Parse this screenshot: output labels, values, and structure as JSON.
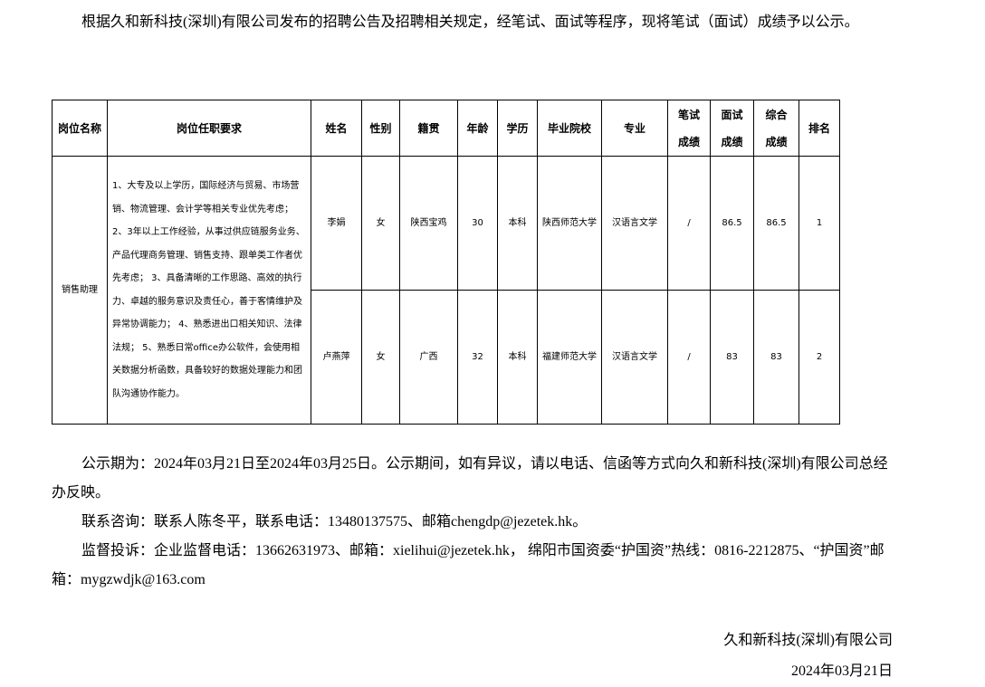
{
  "intro": "根据久和新科技(深圳)有限公司发布的招聘公告及招聘相关规定，经笔试、面试等程序，现将笔试（面试）成绩予以公示。",
  "table": {
    "headers": [
      "岗位名称",
      "岗位任职要求",
      "姓名",
      "性别",
      "籍贯",
      "年龄",
      "学历",
      "毕业院校",
      "专业",
      "笔试成绩",
      "面试成绩",
      "综合成绩",
      "排名"
    ],
    "position": "销售助理",
    "requirements": "1、大专及以上学历，国际经济与贸易、市场营销、物流管理、会计学等相关专业优先考虑； 2、3年以上工作经验，从事过供应链服务业务、产品代理商务管理、销售支持、跟单类工作者优先考虑； 3、具备清晰的工作思路、高效的执行力、卓越的服务意识及责任心，善于客情维护及异常协调能力； 4、熟悉进出口相关知识、法律法规； 5、熟悉日常office办公软件，会使用相关数据分析函数，具备较好的数据处理能力和团队沟通协作能力。",
    "rows": [
      {
        "name": "李娟",
        "gender": "女",
        "origin": "陕西宝鸡",
        "age": "30",
        "edu": "本科",
        "school": "陕西师范大学",
        "major": "汉语言文学",
        "written": "/",
        "interview": "86.5",
        "total": "86.5",
        "rank": "1"
      },
      {
        "name": "卢燕萍",
        "gender": "女",
        "origin": "广西",
        "age": "32",
        "edu": "本科",
        "school": "福建师范大学",
        "major": "汉语言文学",
        "written": "/",
        "interview": "83",
        "total": "83",
        "rank": "2"
      }
    ]
  },
  "notice_period": "公示期为：2024年03月21日至2024年03月25日。公示期间，如有异议，请以电话、信函等方式向久和新科技(深圳)有限公司总经办反映。",
  "contact": "联系咨询：联系人陈冬平，联系电话：13480137575、邮箱chengdp@jezetek.hk。",
  "supervision": "监督投诉：企业监督电话：13662631973、邮箱：xielihui@jezetek.hk， 绵阳市国资委“护国资”热线：0816-2212875、“护国资”邮箱：mygzwdjk@163.com",
  "signature": {
    "company": "久和新科技(深圳)有限公司",
    "date": "2024年03月21日"
  }
}
